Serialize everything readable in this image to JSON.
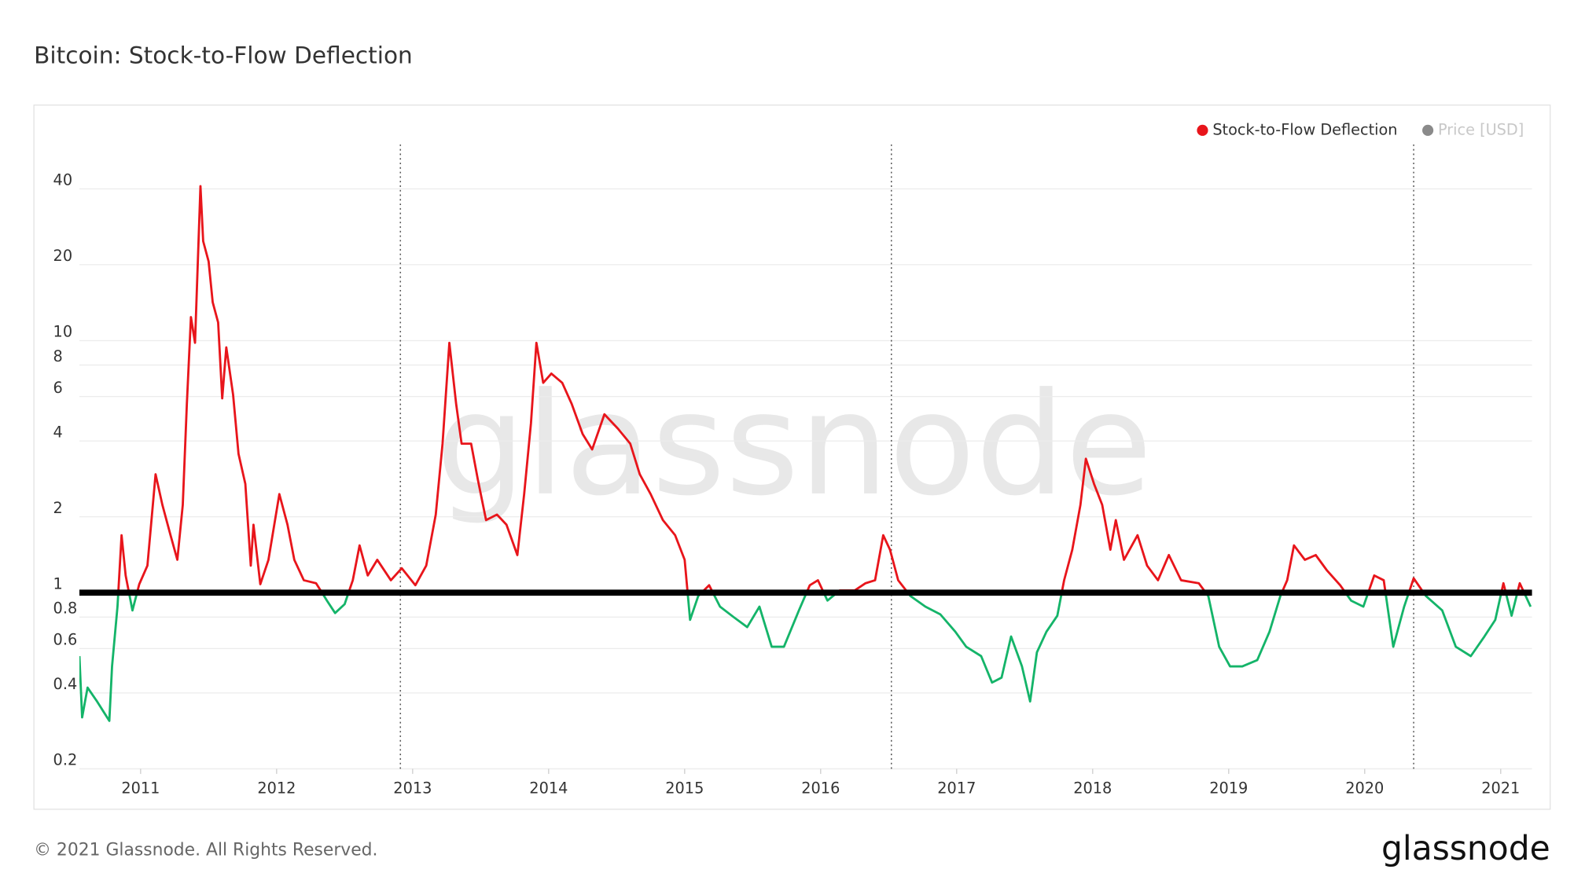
{
  "chart_data": {
    "type": "line",
    "title": "Bitcoin: Stock-to-Flow Deflection",
    "log_scale": true,
    "grid": true,
    "legend": "top-right",
    "xlim": [
      2010.55,
      2021.23
    ],
    "xticks": [
      2011,
      2012,
      2013,
      2014,
      2015,
      2016,
      2017,
      2018,
      2019,
      2020,
      2021
    ],
    "ylim": [
      0.2,
      60
    ],
    "yticks": [
      0.2,
      0.4,
      0.6,
      0.8,
      1,
      2,
      4,
      6,
      8,
      10,
      20,
      40
    ],
    "threshold": 1,
    "halvings": [
      2012.91,
      2016.52,
      2020.36
    ],
    "x": [
      2010.55,
      2010.57,
      2010.61,
      2010.68,
      2010.77,
      2010.79,
      2010.83,
      2010.86,
      2010.89,
      2010.94,
      2010.99,
      2011.05,
      2011.11,
      2011.16,
      2011.22,
      2011.27,
      2011.31,
      2011.34,
      2011.37,
      2011.4,
      2011.44,
      2011.46,
      2011.5,
      2011.53,
      2011.57,
      2011.6,
      2011.63,
      2011.68,
      2011.72,
      2011.77,
      2011.81,
      2011.83,
      2011.88,
      2011.94,
      2012.02,
      2012.08,
      2012.13,
      2012.2,
      2012.29,
      2012.37,
      2012.43,
      2012.5,
      2012.56,
      2012.61,
      2012.67,
      2012.74,
      2012.84,
      2012.92,
      2013.02,
      2013.1,
      2013.17,
      2013.22,
      2013.27,
      2013.32,
      2013.36,
      2013.43,
      2013.48,
      2013.54,
      2013.62,
      2013.69,
      2013.77,
      2013.82,
      2013.87,
      2013.91,
      2013.96,
      2014.02,
      2014.1,
      2014.17,
      2014.25,
      2014.32,
      2014.41,
      2014.51,
      2014.6,
      2014.67,
      2014.75,
      2014.84,
      2014.93,
      2015.0,
      2015.04,
      2015.1,
      2015.18,
      2015.26,
      2015.36,
      2015.46,
      2015.55,
      2015.64,
      2015.73,
      2015.84,
      2015.92,
      2015.98,
      2016.05,
      2016.14,
      2016.25,
      2016.33,
      2016.4,
      2016.46,
      2016.51,
      2016.57,
      2016.66,
      2016.77,
      2016.88,
      2016.99,
      2017.07,
      2017.18,
      2017.26,
      2017.33,
      2017.4,
      2017.48,
      2017.54,
      2017.59,
      2017.66,
      2017.74,
      2017.79,
      2017.85,
      2017.91,
      2017.95,
      2018.01,
      2018.07,
      2018.13,
      2018.17,
      2018.23,
      2018.33,
      2018.4,
      2018.48,
      2018.56,
      2018.65,
      2018.78,
      2018.85,
      2018.93,
      2019.01,
      2019.1,
      2019.21,
      2019.3,
      2019.38,
      2019.43,
      2019.48,
      2019.56,
      2019.64,
      2019.72,
      2019.82,
      2019.9,
      2019.99,
      2020.07,
      2020.14,
      2020.21,
      2020.29,
      2020.36,
      2020.45,
      2020.57,
      2020.67,
      2020.78,
      2020.88,
      2020.96,
      2021.02,
      2021.08,
      2021.14,
      2021.22
    ],
    "series": [
      {
        "name": "Stock-to-Flow Deflection",
        "color": "#e8151b",
        "below_color": "#14b469",
        "values": [
          0.56,
          0.32,
          0.42,
          0.37,
          0.31,
          0.51,
          0.88,
          1.69,
          1.17,
          0.85,
          1.08,
          1.28,
          2.95,
          2.23,
          1.69,
          1.35,
          2.23,
          5.6,
          12.4,
          9.8,
          41,
          24.8,
          20.6,
          14.2,
          11.8,
          5.9,
          9.4,
          6.1,
          3.55,
          2.7,
          1.28,
          1.86,
          1.08,
          1.35,
          2.46,
          1.86,
          1.35,
          1.12,
          1.09,
          0.93,
          0.83,
          0.9,
          1.12,
          1.54,
          1.17,
          1.35,
          1.12,
          1.25,
          1.07,
          1.28,
          2.04,
          3.9,
          9.8,
          5.6,
          3.9,
          3.9,
          2.8,
          1.94,
          2.04,
          1.86,
          1.41,
          2.46,
          4.7,
          9.8,
          6.8,
          7.4,
          6.8,
          5.6,
          4.26,
          3.7,
          5.1,
          4.47,
          3.9,
          2.95,
          2.46,
          1.94,
          1.69,
          1.35,
          0.78,
          0.97,
          1.07,
          0.88,
          0.8,
          0.73,
          0.88,
          0.61,
          0.61,
          0.85,
          1.07,
          1.12,
          0.93,
          1.02,
          1.02,
          1.09,
          1.12,
          1.69,
          1.48,
          1.12,
          0.97,
          0.88,
          0.82,
          0.7,
          0.61,
          0.56,
          0.44,
          0.46,
          0.67,
          0.51,
          0.37,
          0.58,
          0.7,
          0.81,
          1.12,
          1.48,
          2.23,
          3.4,
          2.7,
          2.23,
          1.48,
          1.94,
          1.35,
          1.69,
          1.28,
          1.12,
          1.41,
          1.12,
          1.09,
          0.97,
          0.61,
          0.51,
          0.51,
          0.54,
          0.7,
          0.97,
          1.12,
          1.54,
          1.35,
          1.41,
          1.23,
          1.07,
          0.93,
          0.88,
          1.17,
          1.12,
          0.61,
          0.88,
          1.14,
          0.97,
          0.85,
          0.61,
          0.56,
          0.67,
          0.78,
          1.09,
          0.81,
          1.09,
          0.88
        ]
      },
      {
        "name": "Price [USD]",
        "color": "#8a8a8a",
        "hidden": true
      }
    ]
  },
  "watermark": "glassnode",
  "copyright": "© 2021 Glassnode. All Rights Reserved.",
  "logo": "glassnode"
}
